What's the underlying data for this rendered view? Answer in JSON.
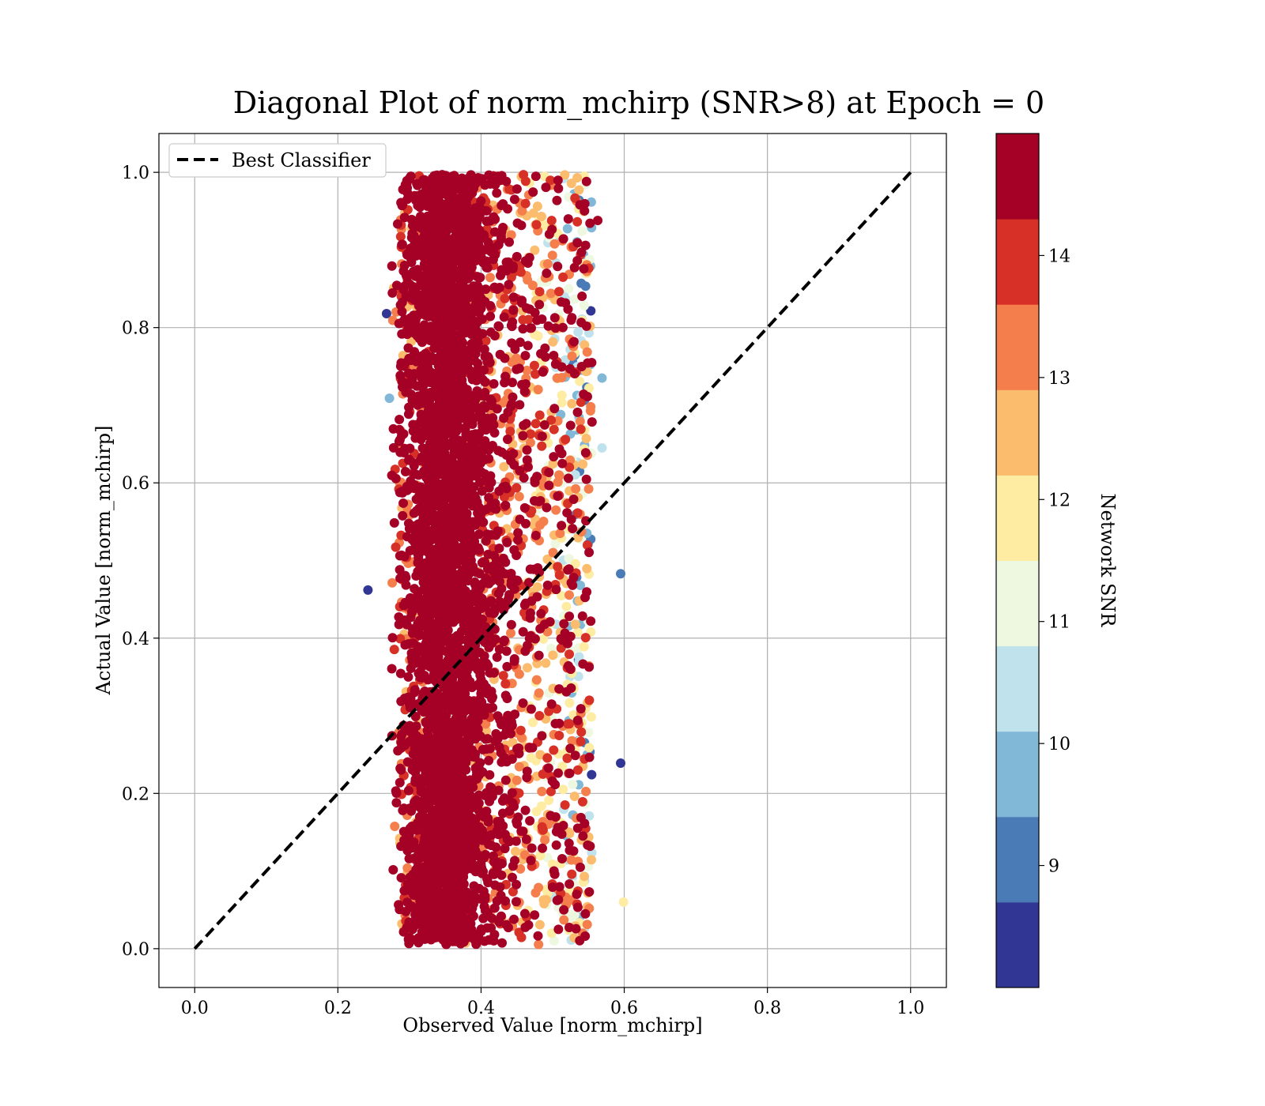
{
  "chart_data": {
    "type": "scatter",
    "title": "Diagonal Plot of norm_mchirp (SNR>8) at Epoch = 0",
    "xlabel": "Observed Value [norm_mchirp]",
    "ylabel": "Actual Value [norm_mchirp]",
    "xlim": [
      -0.05,
      1.05
    ],
    "ylim": [
      -0.05,
      1.05
    ],
    "xticks": [
      "0.0",
      "0.2",
      "0.4",
      "0.6",
      "0.8",
      "1.0"
    ],
    "yticks": [
      "0.0",
      "0.2",
      "0.4",
      "0.6",
      "0.8",
      "1.0"
    ],
    "grid": true,
    "legend": {
      "placement": "top-left",
      "entries": [
        "Best Classifier"
      ]
    },
    "reference_line": {
      "name": "Best Classifier",
      "style": "dashed",
      "color": "#000000",
      "x": [
        0.0,
        1.0
      ],
      "y": [
        0.0,
        1.0
      ]
    },
    "colorbar": {
      "label": "Network SNR",
      "range": [
        8,
        15
      ],
      "ticks": [
        "9",
        "10",
        "11",
        "12",
        "13",
        "14"
      ],
      "colors": [
        "#313695",
        "#4a7bb7",
        "#82b8d7",
        "#bfe2ed",
        "#eef8e0",
        "#feeca2",
        "#fcbc6d",
        "#f57e4d",
        "#d73027",
        "#a50026"
      ]
    },
    "series": [
      {
        "points_summary": "dense cloud of points, observed 0.25-0.60, actual 0.0-1.0, color = network SNR",
        "x_range": [
          0.24,
          0.6
        ],
        "y_range": [
          0.0,
          1.0
        ],
        "color_range": [
          8,
          15
        ],
        "outliers": [
          {
            "x": 0.242,
            "y": 0.462,
            "snr": 8.5
          },
          {
            "x": 0.595,
            "y": 0.483,
            "snr": 9.2
          },
          {
            "x": 0.595,
            "y": 0.239,
            "snr": 8.4
          },
          {
            "x": 0.599,
            "y": 0.06,
            "snr": 11.8
          },
          {
            "x": 0.31,
            "y": 0.038,
            "snr": 13.8
          },
          {
            "x": 0.272,
            "y": 0.709,
            "snr": 9.5
          },
          {
            "x": 0.268,
            "y": 0.818,
            "snr": 8.5
          },
          {
            "x": 0.569,
            "y": 0.735,
            "snr": 9.5
          },
          {
            "x": 0.569,
            "y": 0.645,
            "snr": 10.2
          },
          {
            "x": 0.563,
            "y": 0.938,
            "snr": 14.5
          }
        ]
      }
    ]
  }
}
